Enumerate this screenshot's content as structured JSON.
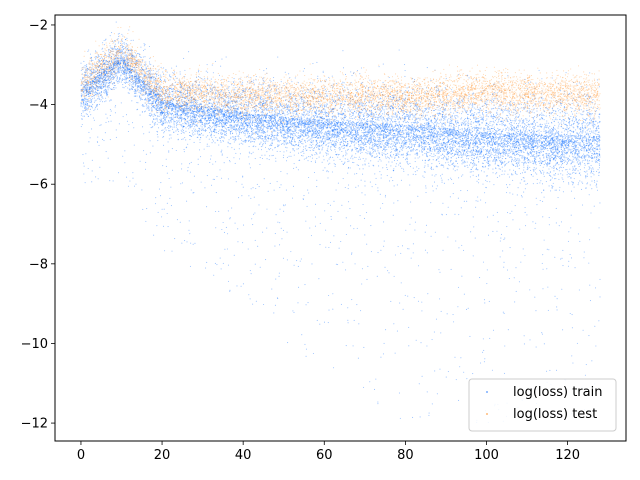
{
  "chart_data": {
    "type": "scatter",
    "title": "",
    "xlabel": "",
    "ylabel": "",
    "xlim": [
      -6.4,
      134.4
    ],
    "ylim": [
      -12.45,
      -1.75
    ],
    "xticks": [
      0,
      20,
      40,
      60,
      80,
      100,
      120
    ],
    "yticks": [
      -2,
      -4,
      -6,
      -8,
      -10,
      -12
    ],
    "x_tick_labels": [
      "0",
      "20",
      "40",
      "60",
      "80",
      "100",
      "120"
    ],
    "y_tick_labels": [
      "−2",
      "−4",
      "−6",
      "−8",
      "−10",
      "−12"
    ],
    "grid": false,
    "legend_position": "lower right",
    "series": [
      {
        "name": "log(loss) train",
        "color": "#1f77ff",
        "x_range": [
          0,
          128
        ],
        "trend": [
          {
            "x": 0,
            "median": -3.6,
            "spread": 0.35
          },
          {
            "x": 10,
            "median": -2.8,
            "spread": 0.3
          },
          {
            "x": 20,
            "median": -3.9,
            "spread": 0.35
          },
          {
            "x": 40,
            "median": -4.2,
            "spread": 0.4
          },
          {
            "x": 60,
            "median": -4.4,
            "spread": 0.45
          },
          {
            "x": 80,
            "median": -4.5,
            "spread": 0.5
          },
          {
            "x": 100,
            "median": -4.7,
            "spread": 0.5
          },
          {
            "x": 128,
            "median": -4.8,
            "spread": 0.55
          }
        ],
        "min_observed": -12.0
      },
      {
        "name": "log(loss) test",
        "color": "#ff8c1f",
        "x_range": [
          0,
          128
        ],
        "trend": [
          {
            "x": 0,
            "median": -3.5,
            "spread": 0.3
          },
          {
            "x": 10,
            "median": -2.7,
            "spread": 0.25
          },
          {
            "x": 20,
            "median": -3.7,
            "spread": 0.25
          },
          {
            "x": 40,
            "median": -3.8,
            "spread": 0.25
          },
          {
            "x": 60,
            "median": -3.8,
            "spread": 0.25
          },
          {
            "x": 80,
            "median": -3.8,
            "spread": 0.25
          },
          {
            "x": 100,
            "median": -3.7,
            "spread": 0.25
          },
          {
            "x": 128,
            "median": -3.8,
            "spread": 0.25
          }
        ]
      }
    ]
  }
}
